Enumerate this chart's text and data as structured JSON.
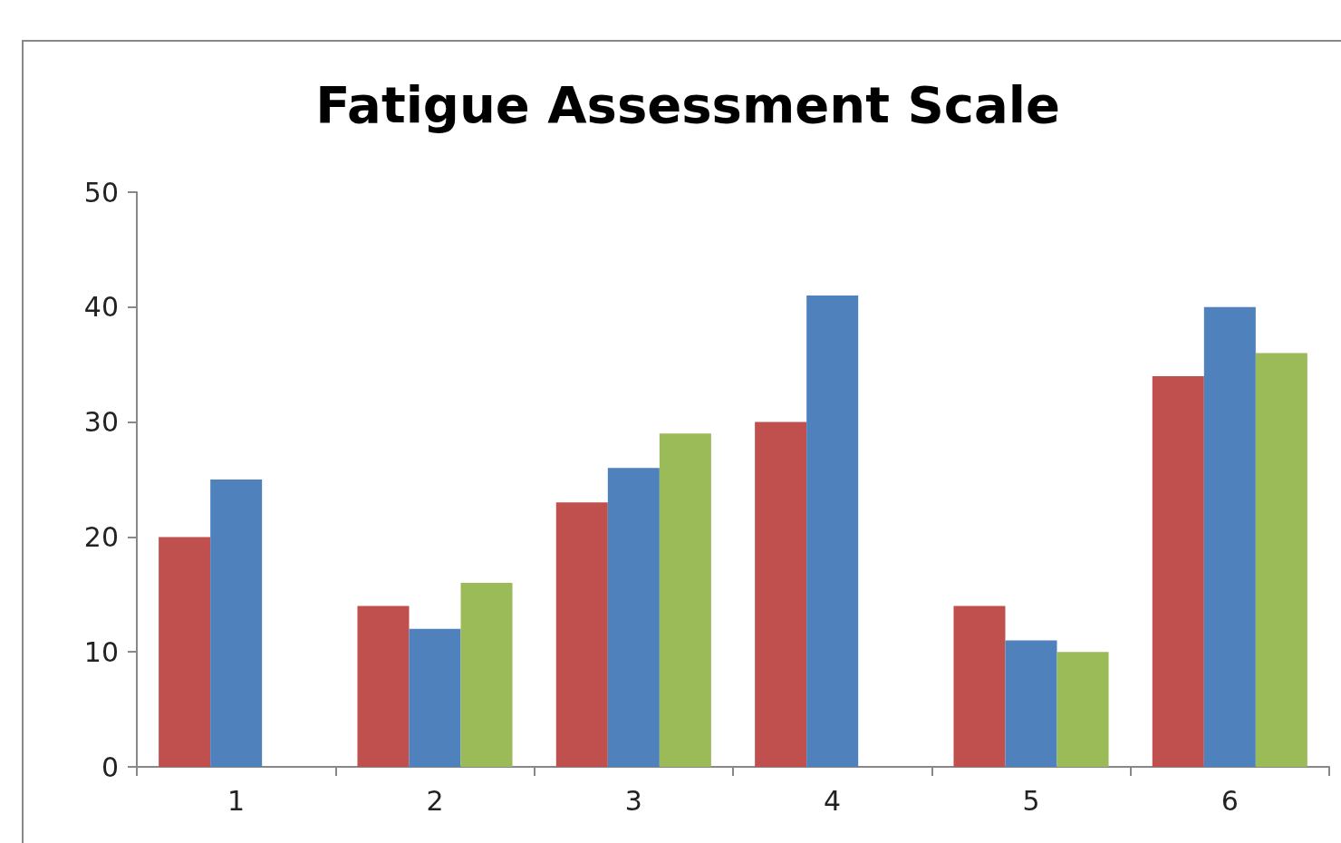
{
  "chart_data": {
    "type": "bar",
    "title": "Fatigue Assessment Scale",
    "categories": [
      "1",
      "2",
      "3",
      "4",
      "5",
      "6"
    ],
    "series": [
      {
        "color": "#c0504d",
        "values": [
          20,
          14,
          23,
          30,
          14,
          34
        ]
      },
      {
        "color": "#4f81bd",
        "values": [
          25,
          12,
          26,
          41,
          11,
          40
        ]
      },
      {
        "color": "#9bbb59",
        "values": [
          null,
          16,
          29,
          null,
          10,
          36
        ]
      }
    ],
    "ylim": [
      0,
      50
    ],
    "yticks": [
      0,
      10,
      20,
      30,
      40,
      50
    ],
    "grid": false
  }
}
